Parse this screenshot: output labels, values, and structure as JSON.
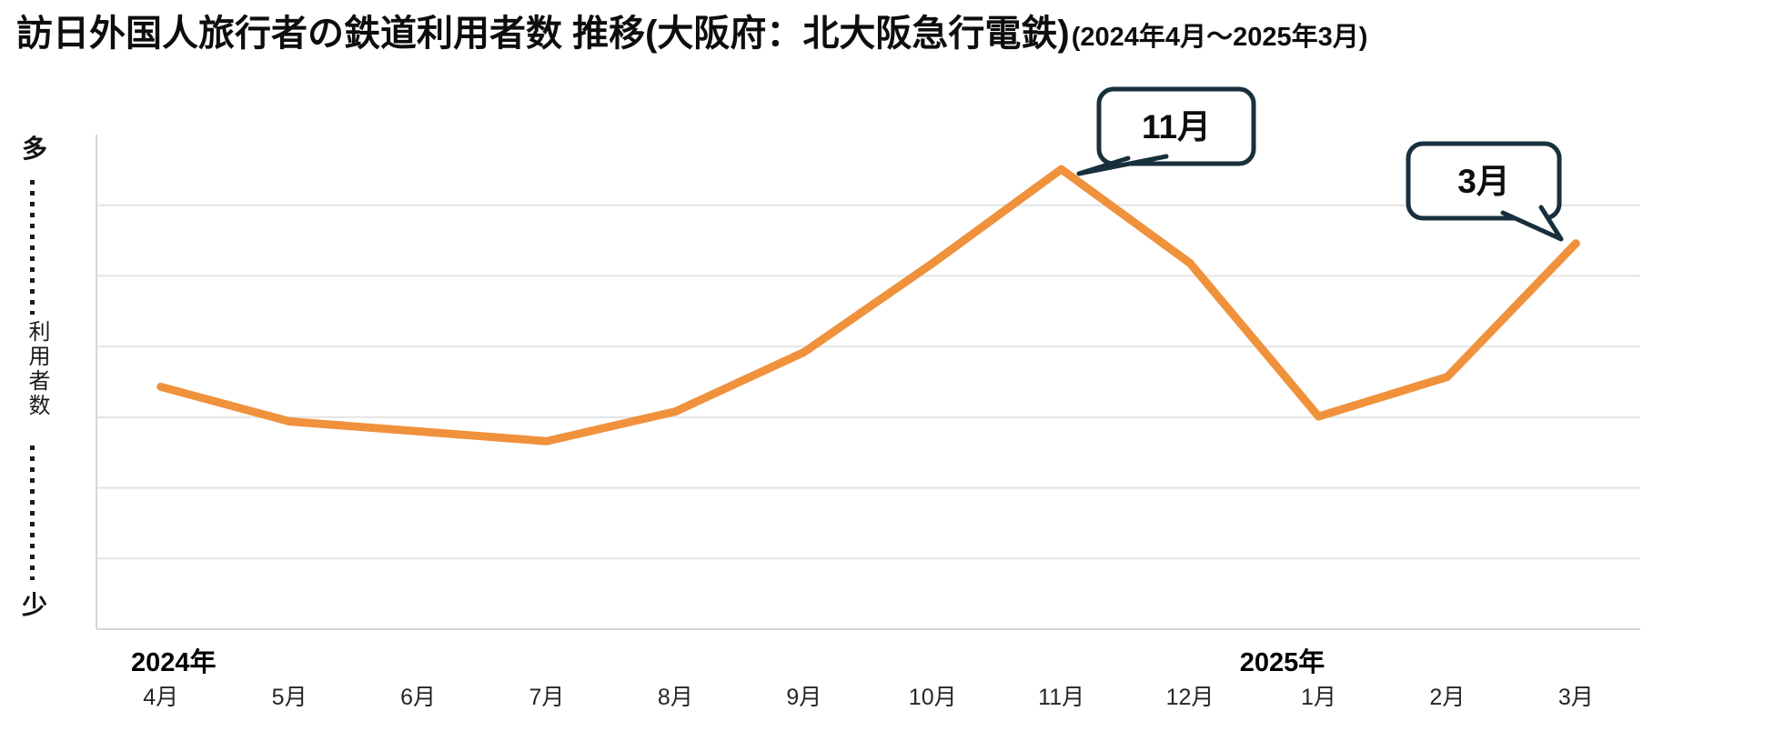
{
  "title": {
    "main": "訪日外国人旅行者の鉄道利用者数 推移(大阪府：北大阪急行電鉄)",
    "period": "(2024年4月～2025年3月)"
  },
  "y_axis": {
    "top_label": "多",
    "axis_title": "利用者数",
    "bottom_label": "少"
  },
  "x_axis": {
    "year_labels": [
      {
        "text": "2024年",
        "month_index": 0
      },
      {
        "text": "2025年",
        "month_index": 9
      }
    ]
  },
  "chart_data": {
    "type": "line",
    "title": "訪日外国人旅行者の鉄道利用者数 推移(大阪府：北大阪急行電鉄)(2024年4月～2025年3月)",
    "categories": [
      "4月",
      "5月",
      "6月",
      "7月",
      "8月",
      "9月",
      "10月",
      "11月",
      "12月",
      "1月",
      "2月",
      "3月"
    ],
    "values": [
      49,
      42,
      40,
      38,
      44,
      56,
      74,
      93,
      74,
      43,
      51,
      78
    ],
    "ylabel": "利用者数（少〜多、目盛り数値なしの相対値）",
    "ylim": [
      0,
      100
    ],
    "grid": true,
    "legend": false,
    "line_color": "#F0913C",
    "annotations": [
      {
        "label": "11月",
        "month_index": 7
      },
      {
        "label": "3月",
        "month_index": 11
      }
    ]
  },
  "colors": {
    "line": "#F0913C",
    "callout_border": "#182F3D",
    "gridline": "#E4E4E4",
    "axis_line": "#D6D6D6",
    "text": "#0D0D0D"
  }
}
